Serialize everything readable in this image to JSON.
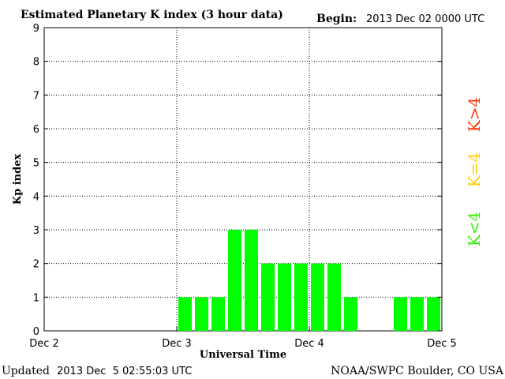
{
  "header": {
    "title": "Estimated Planetary K index (3 hour data)",
    "begin_label": "Begin:",
    "begin_value": "2013 Dec 02 0000 UTC"
  },
  "footer": {
    "updated_label": "Updated",
    "updated_value": "2013 Dec  5 02:55:03 UTC",
    "source": "NOAA/SWPC Boulder, CO USA"
  },
  "colors": {
    "bar_quiet": "#00ff00",
    "legend_active": "#ff3300",
    "legend_moderate": "#ffcc00",
    "legend_quiet": "#33ee00"
  },
  "legend": [
    {
      "label": "K>4",
      "color": "#ff3300"
    },
    {
      "label": "K=4",
      "color": "#ffcc00"
    },
    {
      "label": "K<4",
      "color": "#33ee00"
    }
  ],
  "chart_data": {
    "type": "bar",
    "xlabel": "Universal Time",
    "ylabel": "Kp index",
    "ylim": [
      0,
      9
    ],
    "yticks": [
      "0",
      "1",
      "2",
      "3",
      "4",
      "5",
      "6",
      "7",
      "8",
      "9"
    ],
    "xticks": [
      "Dec 2",
      "Dec 3",
      "Dec 4",
      "Dec 5"
    ],
    "grid": true,
    "interval_hours": 3,
    "series": [
      {
        "values": [
          null,
          null,
          null,
          null,
          null,
          null,
          null,
          null,
          1,
          1,
          1,
          3,
          3,
          2,
          2,
          2,
          2,
          2,
          1,
          null,
          null,
          1,
          1,
          1
        ]
      }
    ]
  }
}
